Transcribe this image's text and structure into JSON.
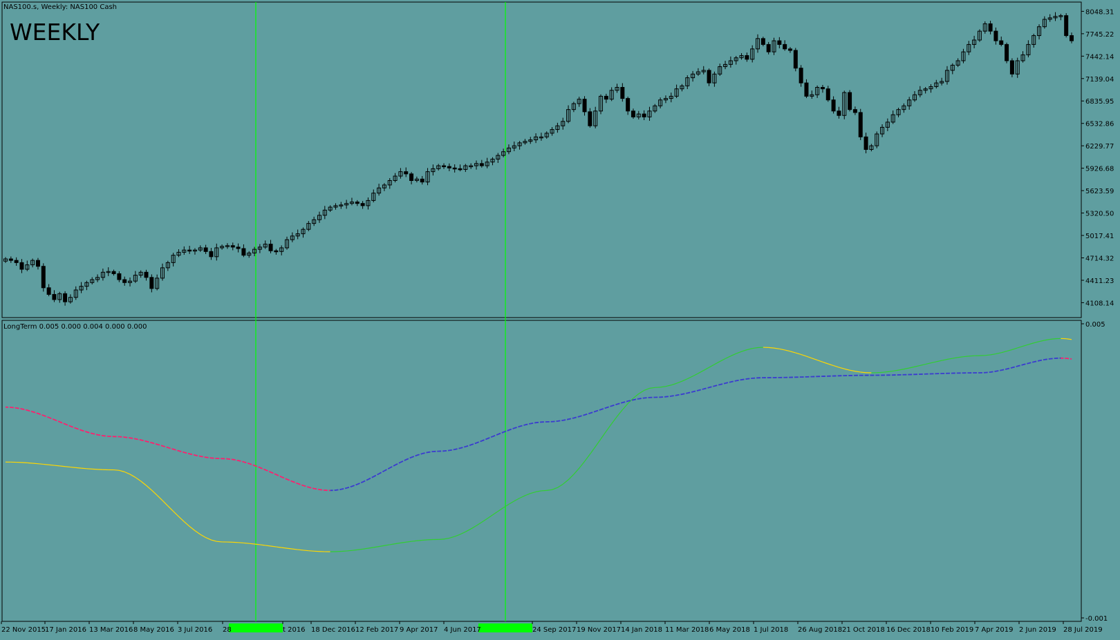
{
  "window": {
    "symbol_label": "NAS100.s, Weekly:  NAS100 Cash",
    "overlay_label": "WEEKLY",
    "indicator_label": "LongTerm 0.005 0.000 0.004 0.000 0.000"
  },
  "colors": {
    "background": "#5f9ea0",
    "candle": "#000000",
    "axis": "#000000",
    "vline": "#00ff00",
    "green_line": "#32cd32",
    "gold_line": "#ffd700",
    "red_line": "#ff1e6e",
    "blue_line": "#3a3ad0",
    "highlight": "#00ff00"
  },
  "chart_data": [
    {
      "type": "candlestick",
      "title": "NAS100.s, Weekly:  NAS100 Cash",
      "y_ticks": [
        "8048.31",
        "7745.22",
        "7442.14",
        "7139.04",
        "6835.95",
        "6532.86",
        "6229.77",
        "5926.68",
        "5623.59",
        "5320.50",
        "5017.41",
        "4714.32",
        "4411.23",
        "4108.14"
      ],
      "ylim": [
        4000,
        8080
      ],
      "closes": [
        4700,
        4680,
        4650,
        4560,
        4620,
        4680,
        4600,
        4310,
        4220,
        4150,
        4230,
        4120,
        4180,
        4280,
        4330,
        4380,
        4420,
        4450,
        4520,
        4530,
        4500,
        4420,
        4380,
        4400,
        4480,
        4520,
        4450,
        4300,
        4440,
        4580,
        4650,
        4750,
        4790,
        4820,
        4810,
        4820,
        4850,
        4800,
        4730,
        4850,
        4870,
        4880,
        4860,
        4840,
        4750,
        4780,
        4830,
        4860,
        4900,
        4810,
        4800,
        4850,
        4960,
        5010,
        5040,
        5100,
        5180,
        5230,
        5290,
        5360,
        5400,
        5420,
        5430,
        5450,
        5470,
        5450,
        5420,
        5490,
        5590,
        5660,
        5700,
        5760,
        5820,
        5880,
        5850,
        5760,
        5780,
        5740,
        5880,
        5920,
        5960,
        5950,
        5930,
        5920,
        5910,
        5960,
        5960,
        5990,
        5960,
        6010,
        6050,
        6100,
        6150,
        6200,
        6230,
        6270,
        6290,
        6310,
        6350,
        6350,
        6400,
        6450,
        6500,
        6560,
        6720,
        6800,
        6860,
        6690,
        6500,
        6700,
        6900,
        6860,
        6980,
        7020,
        6870,
        6700,
        6620,
        6660,
        6620,
        6700,
        6770,
        6850,
        6870,
        6900,
        7000,
        7040,
        7150,
        7200,
        7230,
        7250,
        7080,
        7200,
        7300,
        7330,
        7380,
        7420,
        7450,
        7400,
        7540,
        7680,
        7600,
        7500,
        7650,
        7600,
        7540,
        7520,
        7280,
        7080,
        6900,
        6920,
        7020,
        7000,
        6850,
        6700,
        6640,
        6950,
        6720,
        6680,
        6350,
        6180,
        6230,
        6390,
        6480,
        6550,
        6650,
        6720,
        6770,
        6850,
        6920,
        6980,
        7000,
        7030,
        7080,
        7100,
        7250,
        7320,
        7380,
        7500,
        7600,
        7660,
        7780,
        7880,
        7780,
        7650,
        7600,
        7380,
        7200,
        7380,
        7460,
        7600,
        7720,
        7840,
        7940,
        7960,
        7980,
        7990,
        7720,
        7650
      ],
      "x_ticks": [
        "22 Nov 2015",
        "17 Jan 2016",
        "13 Mar 2016",
        "8 May 2016",
        "3 Jul 2016",
        "28",
        "t 2016",
        "18 Dec 2016",
        "12 Feb 2017",
        "9 Apr 2017",
        "4 Jun 2017",
        "24 Sep 2017",
        "19 Nov 2017",
        "14 Jan 2018",
        "11 Mar 2018",
        "6 May 2018",
        "1 Jul 2018",
        "26 Aug 2018",
        "21 Oct 2018",
        "16 Dec 2018",
        "10 Feb 2019",
        "7 Apr 2019",
        "2 Jun 2019",
        "28 Jul 2019"
      ]
    },
    {
      "type": "line",
      "title": "LongTerm 0.005 0.000 0.004 0.000 0.000",
      "y_ticks": [
        "0.005",
        "-0.001"
      ],
      "ylim": [
        -0.001,
        0.005
      ],
      "x": [
        0,
        20,
        40,
        60,
        80,
        100,
        120,
        140,
        160,
        180,
        195
      ],
      "series": [
        {
          "color_key": "fast",
          "values": [
            0.00218,
            0.00202,
            0.00055,
            0.00035,
            0.0006,
            0.0016,
            0.0037,
            0.00452,
            0.004,
            0.00435,
            0.0047
          ]
        },
        {
          "color_key": "slow",
          "values": [
            0.0033,
            0.0027,
            0.00225,
            0.0016,
            0.0024,
            0.003,
            0.0035,
            0.0039,
            0.00395,
            0.004,
            0.0043
          ]
        }
      ]
    }
  ]
}
